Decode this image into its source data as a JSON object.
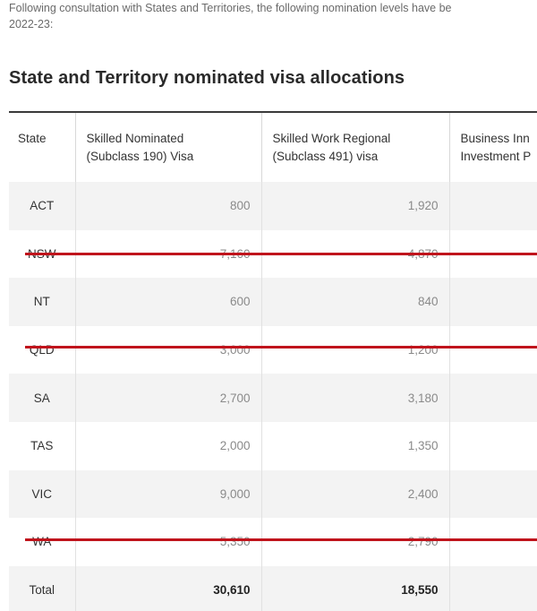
{
  "intro": {
    "line1": "Following consultation with States and Territories, the following nomination levels have be",
    "line2": "2022-23:"
  },
  "heading": "State and Territory nominated visa allocations",
  "table": {
    "headers": [
      [
        "State"
      ],
      [
        "Skilled Nominated",
        "(Subclass 190) Visa"
      ],
      [
        "Skilled Work Regional",
        "(Subclass 491) visa"
      ],
      [
        "Business Inn",
        "Investment P"
      ]
    ],
    "rows": [
      {
        "state": "ACT",
        "v190": "800",
        "v491": "1,920",
        "biip": "",
        "struck": false
      },
      {
        "state": "NSW",
        "v190": "7,160",
        "v491": "4,870",
        "biip": "",
        "struck": true
      },
      {
        "state": "NT",
        "v190": "600",
        "v491": "840",
        "biip": "",
        "struck": false
      },
      {
        "state": "QLD",
        "v190": "3,000",
        "v491": "1,200",
        "biip": "",
        "struck": true
      },
      {
        "state": "SA",
        "v190": "2,700",
        "v491": "3,180",
        "biip": "",
        "struck": false
      },
      {
        "state": "TAS",
        "v190": "2,000",
        "v491": "1,350",
        "biip": "",
        "struck": false
      },
      {
        "state": "VIC",
        "v190": "9,000",
        "v491": "2,400",
        "biip": "",
        "struck": false
      },
      {
        "state": "WA",
        "v190": "5,350",
        "v491": "2,790",
        "biip": "",
        "struck": true
      }
    ],
    "total": {
      "state": "Total",
      "v190": "30,610",
      "v491": "18,550",
      "biip": ""
    }
  },
  "colors": {
    "strike": "#c0141c",
    "stripe": "#f3f3f3",
    "rule": "#3a3a3a"
  }
}
